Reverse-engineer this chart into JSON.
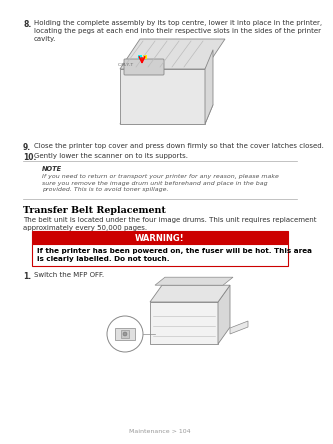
{
  "bg_color": "#ffffff",
  "footer_text": "Maintenance > 104",
  "item8_bullet": "8.",
  "item8_text": "Holding the complete assembly by its top centre, lower it into place in the printer,\nlocating the pegs at each end into their respective slots in the sides of the printer\ncavity.",
  "item9_bullet": "9.",
  "item9_text": "Close the printer top cover and press down firmly so that the cover latches closed.",
  "item10_bullet": "10.",
  "item10_text": "Gently lower the scanner on to its supports.",
  "note_title": "NOTE",
  "note_text": "If you need to return or transport your printer for any reason, please make\nsure you remove the image drum unit beforehand and place in the bag\nprovided. This is to avoid toner spillage.",
  "section_title": "Transfer Belt Replacement",
  "section_body": "The belt unit is located under the four image drums. This unit requires replacement\napproximately every 50,000 pages.",
  "warning_title": "WARNING!",
  "warning_title_bg": "#cc0000",
  "warning_title_color": "#ffffff",
  "warning_body": "If the printer has been powered on, the fuser will be hot. This area\nis clearly labelled. Do not touch.",
  "warning_border_color": "#cc0000",
  "item1_bullet": "1.",
  "item1_text": "Switch the MFP OFF.",
  "text_color": "#333333",
  "line_color": "#aaaaaa",
  "sketch_color": "#888888",
  "sketch_fill": "#f2f2f2"
}
